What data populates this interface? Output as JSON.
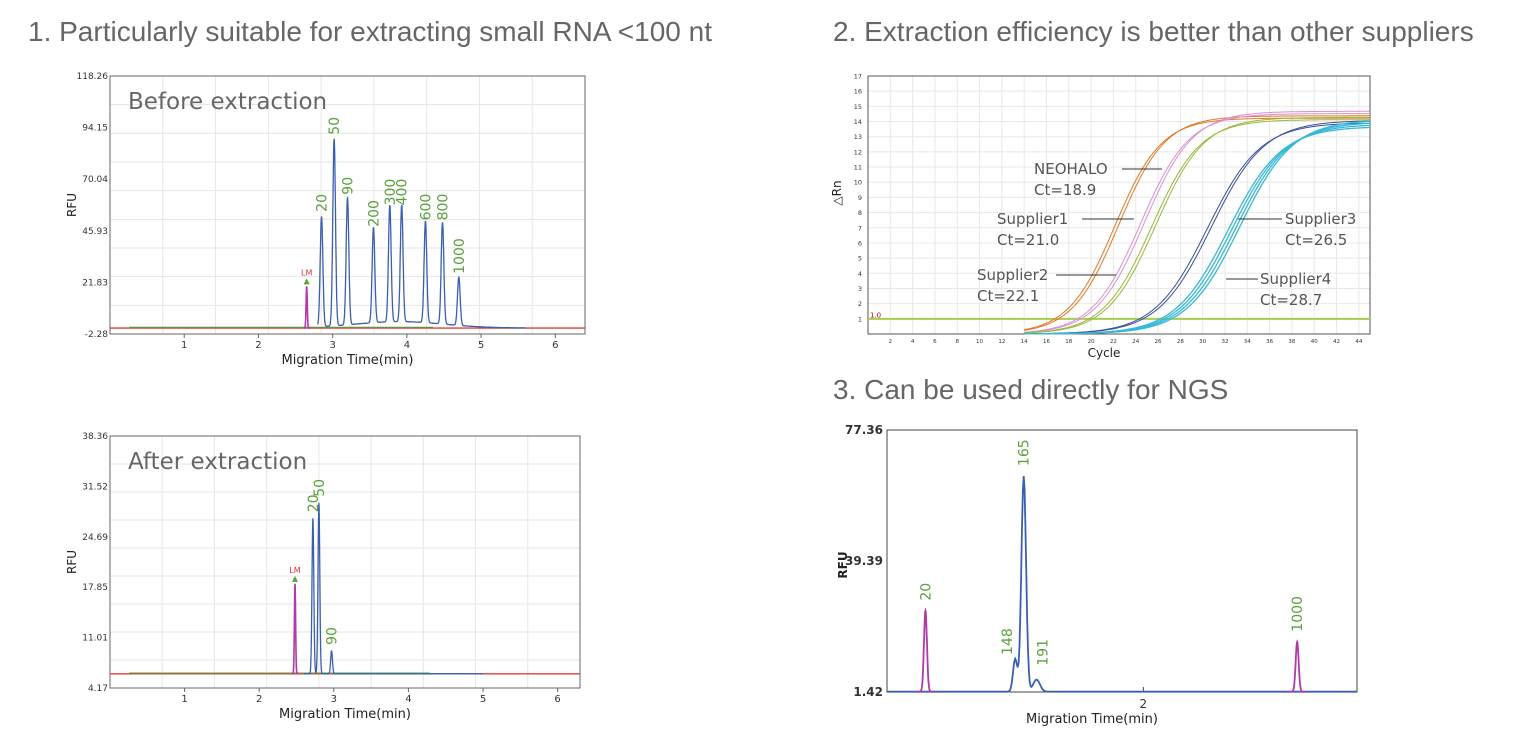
{
  "headings": {
    "h1": "1. Particularly suitable for extracting small RNA <100 nt",
    "h2": "2. Extraction efficiency is better than other suppliers",
    "h3": "3. Can be used directly for NGS"
  },
  "colors": {
    "trace_blue": "#3a5fb0",
    "ladder_green": "#5aa03c",
    "marker_magenta": "#b03aa8",
    "lm_red": "#e03030",
    "baseline_red": "#d84040",
    "threshold_green": "#a8cc50",
    "neohalo_orange": "#e07828",
    "supplier1_pink": "#d890d0",
    "supplier2_olive": "#98b838",
    "supplier3_navy": "#3a4ea0",
    "supplier4_cyan": "#38b8d8"
  },
  "chart_data": [
    {
      "id": "before",
      "type": "line",
      "title": "Before extraction",
      "xlabel": "Migration Time(min)",
      "ylabel": "RFU",
      "xlim": [
        0,
        6.4
      ],
      "ylim": [
        -2.28,
        118.26
      ],
      "xticks": [
        1,
        2,
        3,
        4,
        5,
        6
      ],
      "yticks": [
        "-2.28",
        "21.83",
        "45.93",
        "70.04",
        "94.15",
        "118.26"
      ],
      "yticks_values": [
        -2.28,
        21.83,
        45.93,
        70.04,
        94.15,
        118.26
      ],
      "grid": true,
      "baseline": 0.5,
      "lm_marker": {
        "label": "LM",
        "x": 2.65,
        "y": 20
      },
      "peaks": [
        {
          "label": "20",
          "x": 2.85,
          "y": 52
        },
        {
          "label": "50",
          "x": 3.02,
          "y": 88
        },
        {
          "label": "90",
          "x": 3.2,
          "y": 60
        },
        {
          "label": "200",
          "x": 3.55,
          "y": 45
        },
        {
          "label": "300",
          "x": 3.77,
          "y": 55
        },
        {
          "label": "400",
          "x": 3.93,
          "y": 55
        },
        {
          "label": "600",
          "x": 4.25,
          "y": 48
        },
        {
          "label": "800",
          "x": 4.48,
          "y": 48
        },
        {
          "label": "1000",
          "x": 4.7,
          "y": 23
        }
      ]
    },
    {
      "id": "after",
      "type": "line",
      "title": "After extraction",
      "xlabel": "Migration Time(min)",
      "ylabel": "RFU",
      "xlim": [
        0,
        6.3
      ],
      "ylim": [
        4.17,
        38.36
      ],
      "xticks": [
        1,
        2,
        3,
        4,
        5,
        6
      ],
      "yticks": [
        "4.17",
        "11.01",
        "17.85",
        "24.69",
        "31.52",
        "38.36"
      ],
      "yticks_values": [
        4.17,
        11.01,
        17.85,
        24.69,
        31.52,
        38.36
      ],
      "grid": true,
      "baseline": 6.1,
      "lm_marker": {
        "label": "LM",
        "x": 2.48,
        "y": 18.3
      },
      "peaks": [
        {
          "label": "20",
          "x": 2.72,
          "y": 27.2
        },
        {
          "label": "50",
          "x": 2.8,
          "y": 29.3
        },
        {
          "label": "90",
          "x": 2.97,
          "y": 9.2
        }
      ]
    },
    {
      "id": "qpcr",
      "type": "line",
      "xlabel": "Cycle",
      "ylabel": "△Rn",
      "xlim": [
        0,
        45
      ],
      "ylim": [
        0,
        17
      ],
      "xticks": [
        2,
        4,
        6,
        8,
        10,
        12,
        14,
        16,
        18,
        20,
        22,
        24,
        26,
        28,
        30,
        32,
        34,
        36,
        38,
        40,
        42,
        44
      ],
      "yticks": [
        1,
        2,
        3,
        4,
        5,
        6,
        7,
        8,
        9,
        10,
        11,
        12,
        13,
        14,
        15,
        16,
        17
      ],
      "grid": true,
      "threshold": {
        "label": "1.0",
        "value": 1.0
      },
      "series": [
        {
          "name": "NEOHALO",
          "ct": "Ct=18.9",
          "mid": 22.3,
          "k": 0.48,
          "max": 14.3
        },
        {
          "name": "Supplier1",
          "ct": "Ct=21.0",
          "mid": 24.6,
          "k": 0.46,
          "max": 14.6
        },
        {
          "name": "Supplier2",
          "ct": "Ct=22.1",
          "mid": 25.6,
          "k": 0.46,
          "max": 14.2
        },
        {
          "name": "Supplier3",
          "ct": "Ct=26.5",
          "mid": 30.6,
          "k": 0.42,
          "max": 14.0
        },
        {
          "name": "Supplier4",
          "ct": "Ct=28.7",
          "mid": 32.8,
          "k": 0.42,
          "max": 13.9
        }
      ]
    },
    {
      "id": "ngs",
      "type": "line",
      "xlabel": "Migration Time(min)",
      "ylabel": "RFU",
      "xlim": [
        1.4,
        2.5
      ],
      "ylim": [
        1.42,
        77.36
      ],
      "xticks": [
        2
      ],
      "yticks": [
        "1.42",
        "39.39",
        "77.36"
      ],
      "yticks_values": [
        1.42,
        39.39,
        77.36
      ],
      "grid": false,
      "baseline": 1.5,
      "peaks": [
        {
          "label": "20",
          "x": 1.49,
          "y": 25,
          "color": "marker"
        },
        {
          "label": "148",
          "x": 1.7,
          "y": 11,
          "color": "trace"
        },
        {
          "label": "165",
          "x": 1.72,
          "y": 64,
          "color": "trace"
        },
        {
          "label": "191",
          "x": 1.75,
          "y": 5,
          "color": "trace"
        },
        {
          "label": "1000",
          "x": 2.36,
          "y": 16,
          "color": "marker"
        }
      ]
    }
  ]
}
